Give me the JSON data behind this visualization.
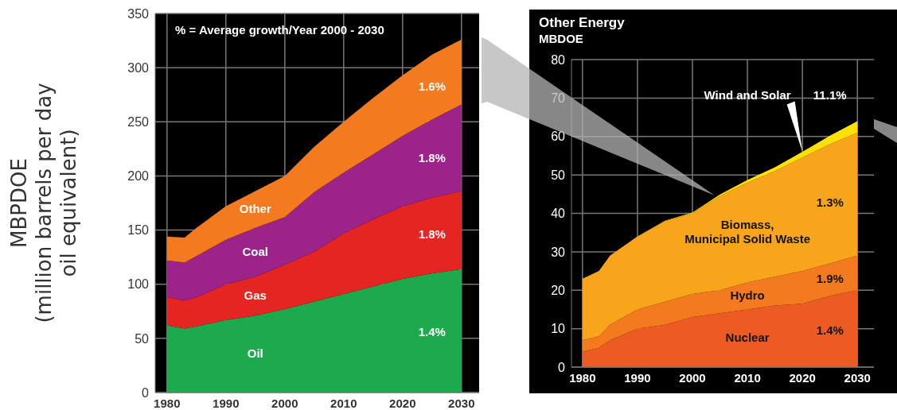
{
  "chart_data": [
    {
      "type": "area",
      "stacked": true,
      "ylabel": "MBPDOE\n(million barrels per day\noil equivalent)",
      "x": [
        1980,
        1983,
        1985,
        1990,
        1995,
        2000,
        2005,
        2010,
        2015,
        2020,
        2025,
        2030
      ],
      "xlim": [
        1978,
        2033
      ],
      "xticks": [
        1980,
        1990,
        2000,
        2010,
        2020,
        2030
      ],
      "ylim": [
        0,
        350
      ],
      "yticks": [
        0,
        50,
        100,
        150,
        200,
        250,
        300,
        350
      ],
      "grid": true,
      "series": [
        {
          "name": "Oil",
          "color": "#1daa4c",
          "values": [
            62,
            59,
            61,
            67,
            71,
            77,
            84,
            91,
            98,
            105,
            110,
            114
          ]
        },
        {
          "name": "Gas",
          "color": "#e52521",
          "values": [
            26,
            26,
            27,
            33,
            36,
            41,
            46,
            56,
            62,
            67,
            70,
            72
          ]
        },
        {
          "name": "Coal",
          "color": "#9b2389",
          "values": [
            34,
            35,
            38,
            41,
            45,
            44,
            55,
            56,
            60,
            65,
            72,
            80
          ]
        },
        {
          "name": "Other",
          "color": "#f47a20",
          "values": [
            22,
            23,
            26,
            31,
            34,
            38,
            42,
            47,
            52,
            56,
            60,
            60
          ]
        }
      ],
      "annotations": [
        "% =  Average growth/Year 2000 - 2030",
        "1.6%",
        "1.8%",
        "1.8%",
        "1.4%"
      ]
    },
    {
      "type": "area",
      "stacked": true,
      "title": "Other Energy",
      "ylabel": "MBDOE",
      "x": [
        1980,
        1983,
        1985,
        1990,
        1995,
        2000,
        2005,
        2010,
        2015,
        2020,
        2025,
        2030
      ],
      "xlim": [
        1978,
        2033
      ],
      "xticks": [
        1980,
        1990,
        2000,
        2010,
        2020,
        2030
      ],
      "ylim": [
        0,
        80
      ],
      "yticks": [
        0,
        10,
        20,
        30,
        40,
        50,
        60,
        70,
        80
      ],
      "grid": true,
      "series": [
        {
          "name": "Nuclear",
          "color": "#ec5b24",
          "values": [
            4,
            5,
            7,
            10,
            11,
            13,
            14,
            15,
            16,
            16.5,
            18.5,
            20
          ]
        },
        {
          "name": "Hydro",
          "color": "#f47a20",
          "values": [
            3,
            3,
            4,
            5,
            6,
            6,
            6,
            7,
            7.5,
            8.5,
            8.5,
            9
          ]
        },
        {
          "name": "Biomass,\nMunicipal Solid Waste",
          "color": "#f9a51b",
          "values": [
            16,
            17,
            18,
            19,
            21,
            21,
            24.5,
            26,
            27.5,
            29.5,
            31,
            32
          ]
        },
        {
          "name": "Wind and Solar",
          "color": "#ffe000",
          "values": [
            0,
            0,
            0,
            0,
            0.1,
            0.2,
            0.4,
            0.7,
            1,
            1.5,
            2.2,
            3
          ]
        }
      ],
      "annotations": [
        "11.1%",
        "1.3%",
        "1.9%",
        "1.4%"
      ]
    }
  ]
}
